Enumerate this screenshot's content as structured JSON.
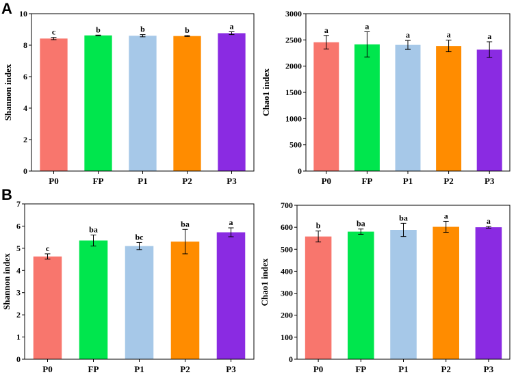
{
  "panel_labels": [
    "A",
    "B"
  ],
  "colors": {
    "P0": "#f8766d",
    "FP": "#00e64d",
    "P1": "#a6c8e8",
    "P2": "#ff8c00",
    "P3": "#8a2be2"
  },
  "chart_data": [
    {
      "type": "bar",
      "title": "",
      "xlabel": "",
      "ylabel": "Shannon index",
      "categories": [
        "P0",
        "FP",
        "P1",
        "P2",
        "P3"
      ],
      "values": [
        8.42,
        8.62,
        8.6,
        8.58,
        8.76
      ],
      "errors": [
        0.07,
        0.02,
        0.07,
        0.03,
        0.09
      ],
      "significance": [
        "c",
        "b",
        "b",
        "b",
        "a"
      ],
      "ylim": [
        0,
        10
      ],
      "yticks": [
        0,
        2,
        4,
        6,
        8,
        10
      ]
    },
    {
      "type": "bar",
      "title": "",
      "xlabel": "",
      "ylabel": "Chao1 index",
      "categories": [
        "P0",
        "FP",
        "P1",
        "P2",
        "P3"
      ],
      "values": [
        2455,
        2415,
        2405,
        2385,
        2315
      ],
      "errors": [
        130,
        240,
        85,
        110,
        150
      ],
      "significance": [
        "a",
        "a",
        "a",
        "a",
        "a"
      ],
      "ylim": [
        0,
        3000
      ],
      "yticks": [
        0,
        500,
        1000,
        1500,
        2000,
        2500,
        3000
      ]
    },
    {
      "type": "bar",
      "title": "",
      "xlabel": "",
      "ylabel": "Shannon index",
      "categories": [
        "P0",
        "FP",
        "P1",
        "P2",
        "P3"
      ],
      "values": [
        4.63,
        5.35,
        5.1,
        5.3,
        5.72
      ],
      "errors": [
        0.12,
        0.25,
        0.16,
        0.55,
        0.2
      ],
      "significance": [
        "c",
        "ba",
        "bc",
        "ba",
        "a"
      ],
      "ylim": [
        0,
        7
      ],
      "yticks": [
        0,
        1,
        2,
        3,
        4,
        5,
        6,
        7
      ]
    },
    {
      "type": "bar",
      "title": "",
      "xlabel": "",
      "ylabel": "Chao1 index",
      "categories": [
        "P0",
        "FP",
        "P1",
        "P2",
        "P3"
      ],
      "values": [
        558,
        580,
        588,
        602,
        600
      ],
      "errors": [
        25,
        12,
        30,
        25,
        4
      ],
      "significance": [
        "b",
        "ba",
        "ba",
        "a",
        "a"
      ],
      "ylim": [
        0,
        700
      ],
      "yticks": [
        0,
        100,
        200,
        300,
        400,
        500,
        600,
        700
      ]
    }
  ]
}
